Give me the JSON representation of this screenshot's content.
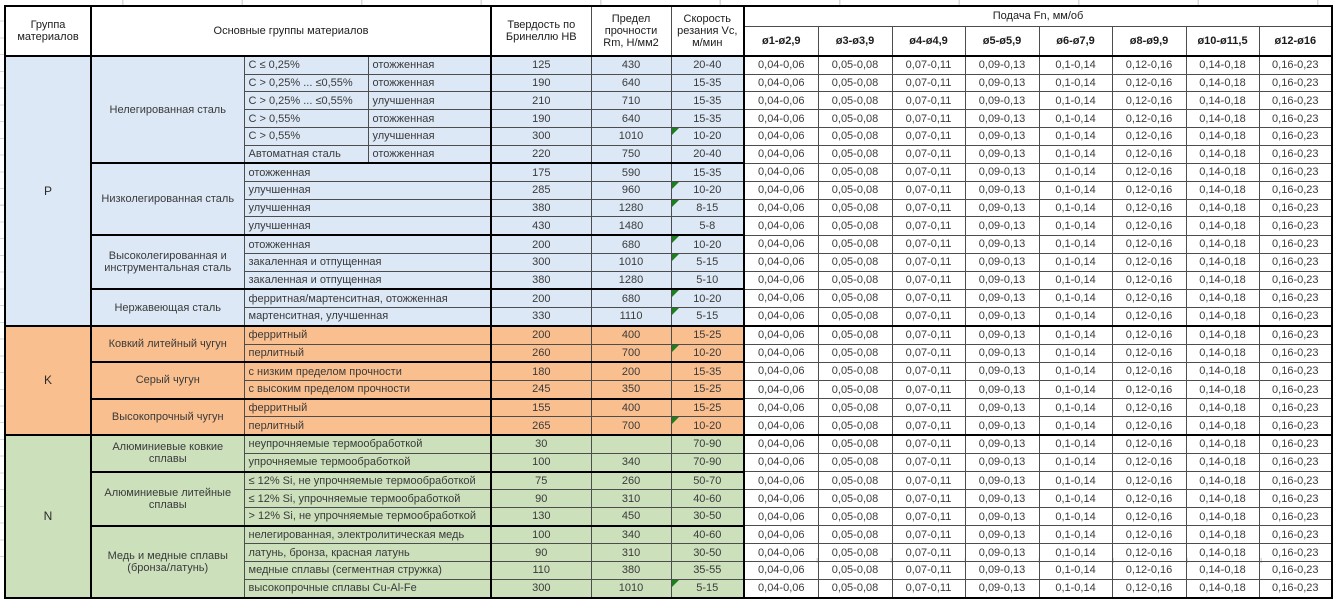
{
  "table": {
    "headers": {
      "group": "Группа материалов",
      "materials": "Основные группы материалов",
      "hardness": "Твердость по Бринеллю НВ",
      "strength": "Предел прочности Rm, Н/мм2",
      "speed": "Скорость резания Vc, м/мин",
      "feed": "Подача Fn, мм/об",
      "feed_cols": [
        "ø1-ø2,9",
        "ø3-ø3,9",
        "ø4-ø4,9",
        "ø5-ø5,9",
        "ø6-ø7,9",
        "ø8-ø9,9",
        "ø10-ø11,5",
        "ø12-ø16"
      ]
    },
    "feed_values": [
      "0,04-0,06",
      "0,05-0,08",
      "0,07-0,11",
      "0,09-0,13",
      "0,1-0,14",
      "0,12-0,16",
      "0,14-0,18",
      "0,16-0,23"
    ],
    "colors": {
      "steel": "#DCE8F5",
      "cast_iron": "#FABF8F",
      "non_ferrous": "#CCE0BC",
      "comment_indicator": "#1E7E1E"
    },
    "groups": [
      {
        "code": "P",
        "color": "#DCE8F5",
        "subgroups": [
          {
            "name": "Нелегированная сталь",
            "rows": [
              {
                "cond": "C ≤ 0,25%",
                "state": "отожженная",
                "hb": "125",
                "rm": "430",
                "vc": "20-40",
                "note": false
              },
              {
                "cond": "C > 0,25% ... ≤0,55%",
                "state": "отожженная",
                "hb": "190",
                "rm": "640",
                "vc": "15-35",
                "note": false
              },
              {
                "cond": "C > 0,25% ... ≤0,55%",
                "state": "улучшенная",
                "hb": "210",
                "rm": "710",
                "vc": "15-35",
                "note": false
              },
              {
                "cond": "C > 0,55%",
                "state": "отожженная",
                "hb": "190",
                "rm": "640",
                "vc": "15-35",
                "note": false
              },
              {
                "cond": "C > 0,55%",
                "state": "улучшенная",
                "hb": "300",
                "rm": "1010",
                "vc": "10-20",
                "note": true
              },
              {
                "cond": "Автоматная сталь",
                "state": "отожженная",
                "hb": "220",
                "rm": "750",
                "vc": "20-40",
                "note": false
              }
            ]
          },
          {
            "name": "Низколегированная сталь",
            "rows": [
              {
                "desc": "отожженная",
                "hb": "175",
                "rm": "590",
                "vc": "15-35",
                "note": false
              },
              {
                "desc": "улучшенная",
                "hb": "285",
                "rm": "960",
                "vc": "10-20",
                "note": true
              },
              {
                "desc": "улучшенная",
                "hb": "380",
                "rm": "1280",
                "vc": "8-15",
                "note": true
              },
              {
                "desc": "улучшенная",
                "hb": "430",
                "rm": "1480",
                "vc": "5-8",
                "note": false
              }
            ]
          },
          {
            "name": "Высоколегированная и инструментальная сталь",
            "rows": [
              {
                "desc": "отожженная",
                "hb": "200",
                "rm": "680",
                "vc": "10-20",
                "note": true
              },
              {
                "desc": "закаленная и отпущенная",
                "hb": "300",
                "rm": "1010",
                "vc": "5-15",
                "note": true
              },
              {
                "desc": "закаленная и отпущенная",
                "hb": "380",
                "rm": "1280",
                "vc": "5-10",
                "note": false
              }
            ]
          },
          {
            "name": "Нержавеющая сталь",
            "rows": [
              {
                "desc": "ферритная/мартенситная, отожженная",
                "hb": "200",
                "rm": "680",
                "vc": "10-20",
                "note": true
              },
              {
                "desc": "мартенситная, улучшенная",
                "hb": "330",
                "rm": "1110",
                "vc": "5-15",
                "note": true
              }
            ]
          }
        ]
      },
      {
        "code": "K",
        "color": "#FABF8F",
        "subgroups": [
          {
            "name": "Ковкий литейный чугун",
            "rows": [
              {
                "desc": "ферритный",
                "hb": "200",
                "rm": "400",
                "vc": "15-25",
                "note": false
              },
              {
                "desc": "перлитный",
                "hb": "260",
                "rm": "700",
                "vc": "10-20",
                "note": true
              }
            ]
          },
          {
            "name": "Серый чугун",
            "rows": [
              {
                "desc": "с низким пределом прочности",
                "hb": "180",
                "rm": "200",
                "vc": "15-35",
                "note": false
              },
              {
                "desc": "с высоким пределом прочности",
                "hb": "245",
                "rm": "350",
                "vc": "15-25",
                "note": false
              }
            ]
          },
          {
            "name": "Высокопрочный чугун",
            "rows": [
              {
                "desc": "ферритный",
                "hb": "155",
                "rm": "400",
                "vc": "15-25",
                "note": false
              },
              {
                "desc": "перлитный",
                "hb": "265",
                "rm": "700",
                "vc": "10-20",
                "note": true
              }
            ]
          }
        ]
      },
      {
        "code": "N",
        "color": "#CCE0BC",
        "subgroups": [
          {
            "name": "Алюминиевые ковкие сплавы",
            "rows": [
              {
                "desc": "неупрочняемые термообработкой",
                "hb": "30",
                "rm": "",
                "vc": "70-90",
                "note": false
              },
              {
                "desc": "упрочняемые термообработкой",
                "hb": "100",
                "rm": "340",
                "vc": "70-90",
                "note": false
              }
            ]
          },
          {
            "name": "Алюминиевые литейные сплавы",
            "rows": [
              {
                "desc": "≤ 12% Si, не упрочняемые термообработкой",
                "hb": "75",
                "rm": "260",
                "vc": "50-70",
                "note": false
              },
              {
                "desc": "≤ 12% Si, упрочняемые термообработкой",
                "hb": "90",
                "rm": "310",
                "vc": "40-60",
                "note": false
              },
              {
                "desc": "> 12% Si, не упрочняемые термообработкой",
                "hb": "130",
                "rm": "450",
                "vc": "30-50",
                "note": false
              }
            ]
          },
          {
            "name": "Медь и медные сплавы (бронза/латунь)",
            "rows": [
              {
                "desc": "нелегированная, электролитическая медь",
                "hb": "100",
                "rm": "340",
                "vc": "40-60",
                "note": false
              },
              {
                "desc": "латунь, бронза, красная латунь",
                "hb": "90",
                "rm": "310",
                "vc": "30-50",
                "note": false
              },
              {
                "desc": "медные сплавы (сегментная стружка)",
                "hb": "110",
                "rm": "380",
                "vc": "35-55",
                "note": false
              },
              {
                "desc": "высокопрочные сплавы Cu-Al-Fe",
                "hb": "300",
                "rm": "1010",
                "vc": "5-15",
                "note": true
              }
            ]
          }
        ]
      }
    ]
  }
}
